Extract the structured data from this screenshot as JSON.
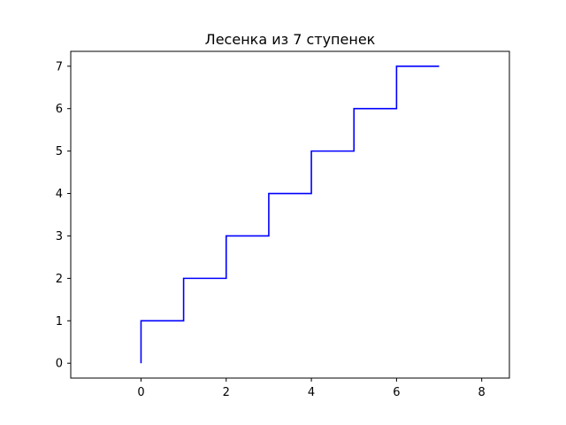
{
  "chart_data": {
    "type": "line",
    "title": "Лесенка из 7 ступенек",
    "xlabel": "",
    "ylabel": "",
    "xlim": [
      -1.65,
      8.65
    ],
    "ylim": [
      -0.35,
      7.35
    ],
    "x_ticks": [
      0,
      2,
      4,
      6,
      8
    ],
    "y_ticks": [
      0,
      1,
      2,
      3,
      4,
      5,
      6,
      7
    ],
    "grid": false,
    "series": [
      {
        "color": "#0000ff",
        "points": [
          [
            0,
            0
          ],
          [
            0,
            1
          ],
          [
            1,
            1
          ],
          [
            1,
            2
          ],
          [
            2,
            2
          ],
          [
            2,
            3
          ],
          [
            3,
            3
          ],
          [
            3,
            4
          ],
          [
            4,
            4
          ],
          [
            4,
            5
          ],
          [
            5,
            5
          ],
          [
            5,
            6
          ],
          [
            6,
            6
          ],
          [
            6,
            7
          ],
          [
            7,
            7
          ]
        ]
      }
    ]
  }
}
